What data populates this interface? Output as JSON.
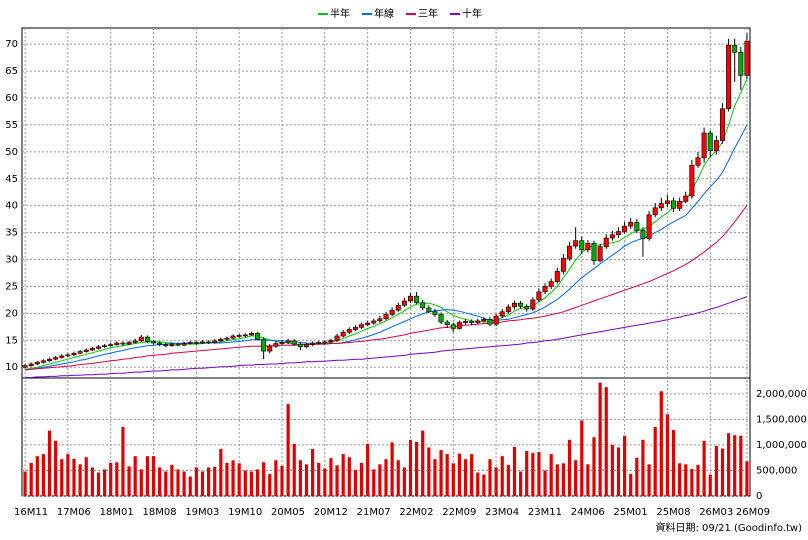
{
  "chart_data": {
    "type": "candlestick",
    "footer": "資料日期: 09/21 (Goodinfo.tw)",
    "categories": [
      "16M11",
      null,
      null,
      null,
      null,
      null,
      null,
      "17M06",
      null,
      null,
      null,
      null,
      null,
      null,
      "18M01",
      null,
      null,
      null,
      null,
      null,
      null,
      "18M08",
      null,
      null,
      null,
      null,
      null,
      null,
      "19M03",
      null,
      null,
      null,
      null,
      null,
      null,
      "19M10",
      null,
      null,
      null,
      null,
      null,
      null,
      "20M05",
      null,
      null,
      null,
      null,
      null,
      null,
      "20M12",
      null,
      null,
      null,
      null,
      null,
      null,
      "21M07",
      null,
      null,
      null,
      null,
      null,
      null,
      "22M02",
      null,
      null,
      null,
      null,
      null,
      null,
      "22M09",
      null,
      null,
      null,
      null,
      null,
      null,
      "23M04",
      null,
      null,
      null,
      null,
      null,
      null,
      "23M11",
      null,
      null,
      null,
      null,
      null,
      null,
      "24M06",
      null,
      null,
      null,
      null,
      null,
      null,
      "25M01",
      null,
      null,
      null,
      null,
      null,
      null,
      "25M08",
      null,
      null,
      null,
      null,
      null,
      null,
      "26M03",
      null,
      null,
      null,
      null,
      null,
      "26M09"
    ],
    "open": [
      10.0,
      10.3,
      10.6,
      10.9,
      11.2,
      11.5,
      11.8,
      12.1,
      12.3,
      12.6,
      12.9,
      13.2,
      13.5,
      13.8,
      14.0,
      14.2,
      14.5,
      14.3,
      14.6,
      14.9,
      15.6,
      14.8,
      14.5,
      14.2,
      14.0,
      14.3,
      14.1,
      14.4,
      14.6,
      14.5,
      14.7,
      14.6,
      14.9,
      15.2,
      15.4,
      15.8,
      15.9,
      16.0,
      16.3,
      15.2,
      13.0,
      13.9,
      14.4,
      14.6,
      14.9,
      14.3,
      13.8,
      14.2,
      14.5,
      14.6,
      14.7,
      15.0,
      15.8,
      16.5,
      17.0,
      17.4,
      17.9,
      18.2,
      18.6,
      19.0,
      19.8,
      20.6,
      21.5,
      22.3,
      23.2,
      22.0,
      21.0,
      20.3,
      19.8,
      18.4,
      17.9,
      17.2,
      18.3,
      18.5,
      18.3,
      18.6,
      18.9,
      18.0,
      19.5,
      20.3,
      21.2,
      21.9,
      21.3,
      20.8,
      22.5,
      24.0,
      25.0,
      25.9,
      27.8,
      30.2,
      32.5,
      33.5,
      31.8,
      33.0,
      29.8,
      32.4,
      34.0,
      34.6,
      35.2,
      36.2,
      36.9,
      35.4,
      33.9,
      38.3,
      39.6,
      40.4,
      40.9,
      39.5,
      40.8,
      41.8,
      47.5,
      48.9,
      53.5,
      50.2,
      52.1,
      58.0,
      69.8,
      68.5,
      64.2
    ],
    "high": [
      10.6,
      10.9,
      11.2,
      11.5,
      11.8,
      12.1,
      12.4,
      12.6,
      12.9,
      13.2,
      13.5,
      13.8,
      14.1,
      14.3,
      14.5,
      14.8,
      14.8,
      14.9,
      15.3,
      16.0,
      15.9,
      15.1,
      14.8,
      14.5,
      14.6,
      14.6,
      14.7,
      14.9,
      14.9,
      15.0,
      15.0,
      15.2,
      15.5,
      15.7,
      16.1,
      16.2,
      16.3,
      16.6,
      16.6,
      15.6,
      14.3,
      14.8,
      15.0,
      15.3,
      15.2,
      14.6,
      14.5,
      14.8,
      14.9,
      15.0,
      15.3,
      16.2,
      16.9,
      17.4,
      17.8,
      18.3,
      18.6,
      19.0,
      19.5,
      20.3,
      21.1,
      22.0,
      22.9,
      23.8,
      24.0,
      22.5,
      21.5,
      20.8,
      20.2,
      18.8,
      18.3,
      18.7,
      19.0,
      18.9,
      19.0,
      19.3,
      19.3,
      19.9,
      20.8,
      21.7,
      22.4,
      22.3,
      21.7,
      23.0,
      24.6,
      25.6,
      26.5,
      28.5,
      31.0,
      33.3,
      36.0,
      34.3,
      33.6,
      33.5,
      32.9,
      34.7,
      35.3,
      36.0,
      37.0,
      37.7,
      37.5,
      36.0,
      39.0,
      40.5,
      41.5,
      42.0,
      41.5,
      41.5,
      42.6,
      48.5,
      50.0,
      54.5,
      54.0,
      53.0,
      59.0,
      71.0,
      71.0,
      69.5,
      72.0
    ],
    "low": [
      9.8,
      10.1,
      10.4,
      10.7,
      11.0,
      11.3,
      11.6,
      11.9,
      12.1,
      12.4,
      12.7,
      13.0,
      13.3,
      13.6,
      13.8,
      14.0,
      14.0,
      14.1,
      14.4,
      14.7,
      14.5,
      14.2,
      13.9,
      13.7,
      13.8,
      13.9,
      13.9,
      14.2,
      14.2,
      14.3,
      14.3,
      14.4,
      14.7,
      15.0,
      15.2,
      15.5,
      15.6,
      15.8,
      15.0,
      11.5,
      12.6,
      13.6,
      14.1,
      14.3,
      14.0,
      13.2,
      13.5,
      13.9,
      14.2,
      14.3,
      14.4,
      14.7,
      15.5,
      16.2,
      16.7,
      17.1,
      17.6,
      17.9,
      18.3,
      18.7,
      19.5,
      20.3,
      21.2,
      21.9,
      21.7,
      20.6,
      20.0,
      19.4,
      18.0,
      17.3,
      16.5,
      17.0,
      17.9,
      17.8,
      18.0,
      18.3,
      17.6,
      17.6,
      19.1,
      19.9,
      20.7,
      20.9,
      20.3,
      20.5,
      22.1,
      23.6,
      24.5,
      25.5,
      27.3,
      29.7,
      32.0,
      31.0,
      31.3,
      29.0,
      29.5,
      32.0,
      33.5,
      34.0,
      34.8,
      35.7,
      34.9,
      30.5,
      33.5,
      37.8,
      39.0,
      39.7,
      38.8,
      39.0,
      40.5,
      41.3,
      47.0,
      48.0,
      49.0,
      49.5,
      51.5,
      57.5,
      63.0,
      61.5,
      63.5
    ],
    "close": [
      10.3,
      10.6,
      10.9,
      11.2,
      11.5,
      11.8,
      12.1,
      12.3,
      12.6,
      12.9,
      13.2,
      13.5,
      13.8,
      14.0,
      14.2,
      14.5,
      14.3,
      14.6,
      14.9,
      15.6,
      14.8,
      14.5,
      14.2,
      14.0,
      14.3,
      14.1,
      14.4,
      14.6,
      14.5,
      14.7,
      14.6,
      14.9,
      15.2,
      15.4,
      15.8,
      15.9,
      16.0,
      16.3,
      15.2,
      13.0,
      13.9,
      14.4,
      14.6,
      14.9,
      14.3,
      13.8,
      14.2,
      14.5,
      14.6,
      14.7,
      15.0,
      15.8,
      16.5,
      17.0,
      17.4,
      17.9,
      18.2,
      18.6,
      19.0,
      19.8,
      20.6,
      21.5,
      22.3,
      23.2,
      22.0,
      21.0,
      20.3,
      19.8,
      18.4,
      17.9,
      17.2,
      18.3,
      18.5,
      18.3,
      18.6,
      18.9,
      18.0,
      19.5,
      20.3,
      21.2,
      21.9,
      21.3,
      20.8,
      22.5,
      24.0,
      25.0,
      25.9,
      27.8,
      30.2,
      32.5,
      33.5,
      31.8,
      33.0,
      29.8,
      32.4,
      34.0,
      34.6,
      35.2,
      36.2,
      36.9,
      35.4,
      33.9,
      38.3,
      39.6,
      40.4,
      40.9,
      39.5,
      40.8,
      41.8,
      47.5,
      48.9,
      53.5,
      50.2,
      52.1,
      58.0,
      69.8,
      68.5,
      64.2,
      70.5
    ],
    "up_color": "#ff0000",
    "down_color": "#00aa00",
    "ylim": [
      8,
      73
    ],
    "yticks": [
      10,
      15,
      20,
      25,
      30,
      35,
      40,
      45,
      50,
      55,
      60,
      65,
      70
    ],
    "grid": true,
    "series": [
      {
        "name": "半年",
        "color": "#00cc00",
        "values": [
          9.6,
          9.8,
          10.0,
          10.3,
          10.6,
          10.9,
          11.2,
          11.5,
          11.8,
          12.1,
          12.4,
          12.7,
          13.0,
          13.3,
          13.6,
          13.8,
          14.0,
          14.2,
          14.4,
          14.6,
          14.7,
          14.7,
          14.7,
          14.6,
          14.5,
          14.4,
          14.3,
          14.3,
          14.3,
          14.4,
          14.5,
          14.6,
          14.7,
          14.9,
          15.1,
          15.3,
          15.5,
          15.8,
          15.8,
          15.4,
          15.1,
          14.8,
          14.6,
          14.5,
          14.3,
          14.2,
          14.3,
          14.4,
          14.4,
          14.5,
          14.6,
          14.9,
          15.3,
          15.8,
          16.2,
          16.7,
          17.2,
          17.6,
          18.1,
          18.6,
          19.2,
          19.8,
          20.5,
          21.2,
          21.7,
          21.9,
          21.9,
          21.6,
          21.1,
          20.3,
          19.6,
          19.2,
          18.9,
          18.6,
          18.5,
          18.4,
          18.4,
          18.8,
          19.2,
          19.7,
          20.4,
          20.9,
          21.2,
          21.4,
          22.1,
          22.9,
          23.9,
          25.0,
          26.6,
          28.2,
          29.9,
          31.3,
          32.2,
          32.6,
          32.7,
          33.0,
          33.1,
          33.4,
          34.1,
          34.8,
          35.4,
          35.6,
          36.1,
          37.0,
          37.9,
          38.7,
          39.7,
          40.4,
          40.9,
          43.0,
          45.0,
          47.5,
          49.1,
          50.2,
          51.8,
          55.0,
          58.5,
          61.0,
          63.5
        ]
      },
      {
        "name": "年線",
        "color": "#0066ff",
        "values": [
          9.5,
          9.6,
          9.8,
          10.0,
          10.2,
          10.4,
          10.6,
          10.8,
          11.0,
          11.3,
          11.5,
          11.8,
          12.1,
          12.4,
          12.6,
          12.9,
          13.1,
          13.4,
          13.6,
          13.8,
          14.0,
          14.1,
          14.2,
          14.3,
          14.4,
          14.4,
          14.5,
          14.5,
          14.5,
          14.5,
          14.5,
          14.5,
          14.5,
          14.6,
          14.7,
          14.8,
          14.9,
          15.1,
          15.1,
          15.0,
          15.0,
          14.9,
          14.9,
          14.8,
          14.7,
          14.6,
          14.5,
          14.4,
          14.3,
          14.3,
          14.4,
          14.4,
          14.6,
          14.8,
          15.1,
          15.4,
          15.7,
          16.1,
          16.5,
          17.0,
          17.5,
          18.0,
          18.5,
          19.0,
          19.5,
          19.9,
          20.3,
          20.5,
          20.6,
          20.7,
          20.6,
          20.4,
          20.1,
          19.8,
          19.5,
          19.1,
          18.7,
          18.7,
          18.8,
          18.9,
          19.2,
          19.5,
          19.8,
          20.1,
          20.6,
          21.2,
          21.9,
          22.6,
          23.5,
          24.5,
          25.6,
          26.6,
          27.5,
          28.3,
          29.2,
          30.0,
          30.8,
          31.6,
          32.5,
          33.1,
          33.6,
          33.9,
          34.4,
          35.0,
          35.6,
          36.3,
          37.0,
          37.6,
          38.2,
          39.5,
          40.8,
          42.2,
          43.5,
          44.7,
          46.2,
          48.4,
          50.7,
          52.8,
          55.0
        ]
      },
      {
        "name": "三年",
        "color": "#e0004a",
        "values": [
          9.5,
          9.6,
          9.7,
          9.8,
          9.9,
          10.0,
          10.1,
          10.2,
          10.3,
          10.5,
          10.6,
          10.7,
          10.9,
          11.0,
          11.2,
          11.3,
          11.5,
          11.6,
          11.8,
          11.9,
          12.1,
          12.2,
          12.3,
          12.4,
          12.6,
          12.7,
          12.8,
          12.9,
          13.0,
          13.1,
          13.2,
          13.3,
          13.4,
          13.5,
          13.6,
          13.7,
          13.8,
          13.9,
          13.9,
          13.9,
          14.0,
          14.0,
          14.1,
          14.1,
          14.1,
          14.2,
          14.2,
          14.2,
          14.3,
          14.3,
          14.4,
          14.4,
          14.5,
          14.6,
          14.7,
          14.8,
          14.9,
          15.1,
          15.2,
          15.4,
          15.6,
          15.8,
          16.0,
          16.3,
          16.5,
          16.7,
          16.9,
          17.1,
          17.3,
          17.4,
          17.5,
          17.7,
          17.8,
          17.9,
          18.0,
          18.1,
          18.2,
          18.3,
          18.4,
          18.6,
          18.7,
          18.8,
          19.0,
          19.1,
          19.3,
          19.5,
          19.8,
          20.0,
          20.3,
          20.7,
          21.1,
          21.5,
          21.9,
          22.3,
          22.7,
          23.1,
          23.5,
          23.9,
          24.3,
          24.7,
          25.1,
          25.5,
          25.9,
          26.4,
          26.9,
          27.4,
          27.9,
          28.5,
          29.1,
          29.8,
          30.6,
          31.4,
          32.3,
          33.2,
          34.3,
          35.6,
          37.0,
          38.5,
          40.1
        ]
      },
      {
        "name": "十年",
        "color": "#7a00cc",
        "values": [
          8.1,
          8.1,
          8.2,
          8.2,
          8.3,
          8.3,
          8.4,
          8.4,
          8.5,
          8.5,
          8.6,
          8.6,
          8.7,
          8.7,
          8.8,
          8.9,
          8.9,
          9.0,
          9.1,
          9.1,
          9.2,
          9.3,
          9.3,
          9.4,
          9.5,
          9.5,
          9.6,
          9.7,
          9.8,
          9.8,
          9.9,
          10.0,
          10.1,
          10.1,
          10.2,
          10.3,
          10.4,
          10.4,
          10.5,
          10.5,
          10.6,
          10.6,
          10.7,
          10.8,
          10.8,
          10.9,
          11.0,
          11.0,
          11.1,
          11.1,
          11.2,
          11.3,
          11.3,
          11.4,
          11.5,
          11.5,
          11.6,
          11.7,
          11.8,
          11.9,
          12.0,
          12.1,
          12.2,
          12.4,
          12.5,
          12.6,
          12.7,
          12.8,
          13.0,
          13.1,
          13.2,
          13.3,
          13.4,
          13.5,
          13.6,
          13.7,
          13.8,
          13.9,
          14.0,
          14.1,
          14.2,
          14.3,
          14.5,
          14.6,
          14.7,
          14.9,
          15.0,
          15.2,
          15.4,
          15.6,
          15.8,
          16.0,
          16.2,
          16.4,
          16.6,
          16.8,
          17.0,
          17.2,
          17.4,
          17.6,
          17.8,
          18.0,
          18.2,
          18.4,
          18.6,
          18.8,
          19.1,
          19.3,
          19.6,
          19.8,
          20.1,
          20.4,
          20.8,
          21.1,
          21.5,
          21.9,
          22.3,
          22.7,
          23.1
        ]
      }
    ],
    "volume": {
      "color": "#e00000",
      "ylim": [
        0,
        2310000
      ],
      "yticks": [
        0,
        {
          "value": 500000,
          "label": "500,000"
        },
        {
          "value": 1000000,
          "label": "1,000,000"
        },
        {
          "value": 1500000,
          "label": "1,500,000"
        },
        {
          "value": 2000000,
          "label": "2,000,000"
        }
      ],
      "values": [
        480000,
        650000,
        780000,
        820000,
        1280000,
        1080000,
        720000,
        820000,
        730000,
        620000,
        760000,
        560000,
        460000,
        520000,
        650000,
        660000,
        1350000,
        580000,
        780000,
        520000,
        780000,
        780000,
        560000,
        480000,
        610000,
        520000,
        480000,
        380000,
        560000,
        480000,
        560000,
        570000,
        920000,
        650000,
        700000,
        640000,
        500000,
        480000,
        520000,
        660000,
        430000,
        700000,
        590000,
        1800000,
        1020000,
        700000,
        620000,
        920000,
        650000,
        540000,
        740000,
        600000,
        820000,
        760000,
        510000,
        650000,
        1020000,
        520000,
        620000,
        720000,
        1050000,
        700000,
        560000,
        1100000,
        1060000,
        1280000,
        950000,
        720000,
        900000,
        820000,
        640000,
        830000,
        720000,
        820000,
        460000,
        420000,
        720000,
        560000,
        780000,
        610000,
        960000,
        480000,
        880000,
        840000,
        860000,
        500000,
        820000,
        620000,
        640000,
        1100000,
        700000,
        1480000,
        620000,
        1150000,
        2220000,
        2130000,
        1000000,
        950000,
        1180000,
        430000,
        750000,
        1100000,
        620000,
        1350000,
        2050000,
        1600000,
        1290000,
        640000,
        620000,
        530000,
        610000,
        1080000,
        420000,
        980000,
        930000,
        1230000,
        1190000,
        1180000,
        680000
      ]
    }
  }
}
